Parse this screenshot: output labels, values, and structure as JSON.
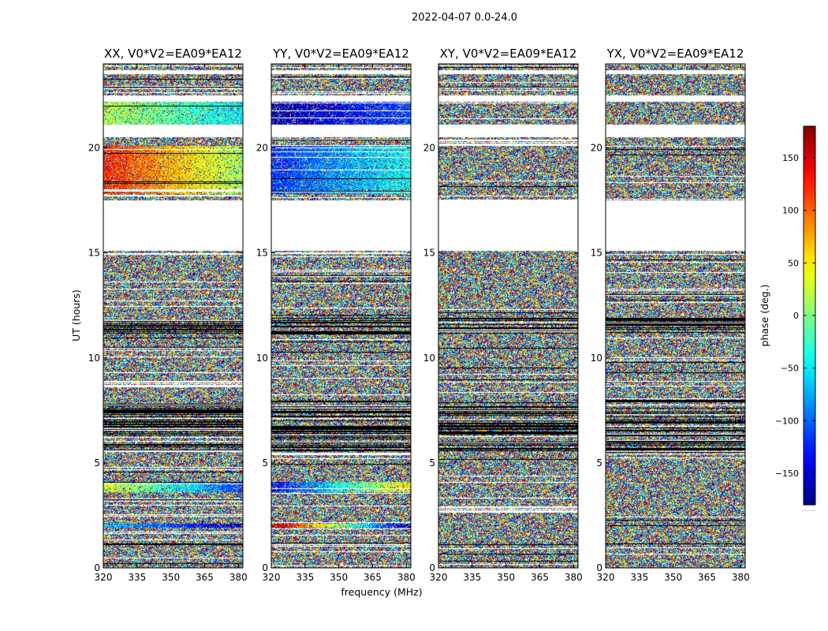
{
  "chart_data": {
    "type": "heatmap",
    "suptitle": "2022-04-07 0.0-24.0",
    "xlabel": "frequency (MHz)",
    "ylabel": "UT (hours)",
    "xlim": [
      320,
      382
    ],
    "ylim": [
      0,
      24
    ],
    "xticks": [
      320,
      335,
      350,
      365,
      380
    ],
    "yticks": [
      0,
      5,
      10,
      15,
      20
    ],
    "panels": [
      {
        "title": "XX, V0*V2=EA09*EA12",
        "pol": "XX"
      },
      {
        "title": "YY, V0*V2=EA09*EA12",
        "pol": "YY"
      },
      {
        "title": "XY, V0*V2=EA09*EA12",
        "pol": "XY"
      },
      {
        "title": "YX, V0*V2=EA09*EA12",
        "pol": "YX"
      }
    ],
    "colorbar": {
      "label": "phase (deg.)",
      "range": [
        -180,
        180
      ],
      "ticks": [
        -150,
        -100,
        -50,
        0,
        50,
        100,
        150
      ],
      "tick_labels": [
        "−150",
        "−100",
        "−50",
        "0",
        "50",
        "100",
        "150"
      ],
      "colormap": "jet",
      "footer": "......"
    },
    "blank_ut_ranges": [
      [
        15.1,
        17.5
      ],
      [
        20.5,
        21.1
      ],
      [
        22.2,
        22.5
      ],
      [
        23.5,
        23.7
      ]
    ],
    "black_ut_ranges": [
      [
        5.5,
        8.0
      ],
      [
        11.1,
        11.9
      ],
      [
        1.1,
        1.2
      ],
      [
        0.3,
        0.35
      ]
    ],
    "coherent_bands": [
      {
        "pol": "XX",
        "ut": [
          17.8,
          20.1
        ],
        "phase_start": 130,
        "phase_end": 10
      },
      {
        "pol": "XX",
        "ut": [
          3.6,
          4.1
        ],
        "phase_start": 40,
        "phase_end": -120
      },
      {
        "pol": "XX",
        "ut": [
          1.9,
          2.1
        ],
        "phase_start": -60,
        "phase_end": -170
      },
      {
        "pol": "XX",
        "ut": [
          21.1,
          22.2
        ],
        "phase_start": 20,
        "phase_end": -50
      },
      {
        "pol": "YY",
        "ut": [
          17.8,
          20.1
        ],
        "phase_start": -120,
        "phase_end": -40
      },
      {
        "pol": "YY",
        "ut": [
          3.6,
          4.1
        ],
        "phase_start": -140,
        "phase_end": 60
      },
      {
        "pol": "YY",
        "ut": [
          1.9,
          2.1
        ],
        "phase_start": 170,
        "phase_end": -170
      },
      {
        "pol": "YY",
        "ut": [
          21.1,
          22.2
        ],
        "phase_start": -170,
        "phase_end": -110
      }
    ]
  }
}
